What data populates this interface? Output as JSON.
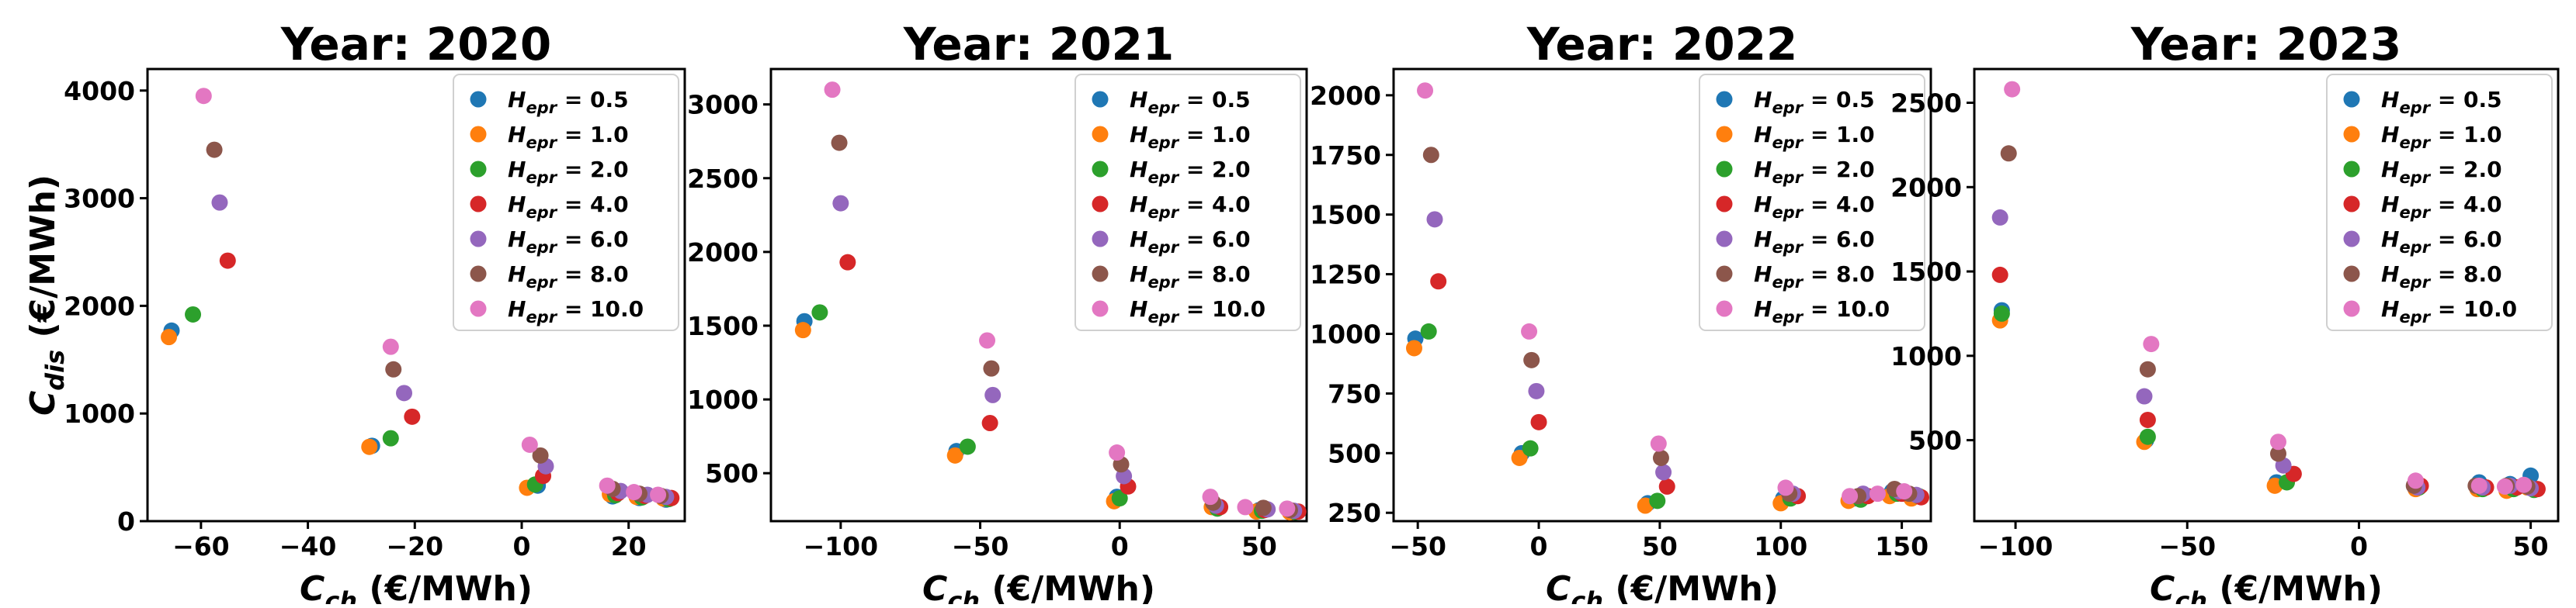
{
  "figure": {
    "ylabel": "C_dis (€/MWh)"
  },
  "legend": {
    "entries": [
      {
        "main": "H",
        "sub": "epr",
        "value": " = 0.5",
        "color": "#1f77b4"
      },
      {
        "main": "H",
        "sub": "epr",
        "value": " = 1.0",
        "color": "#ff7f0e"
      },
      {
        "main": "H",
        "sub": "epr",
        "value": " = 2.0",
        "color": "#2ca02c"
      },
      {
        "main": "H",
        "sub": "epr",
        "value": " = 4.0",
        "color": "#d62728"
      },
      {
        "main": "H",
        "sub": "epr",
        "value": " = 6.0",
        "color": "#9467bd"
      },
      {
        "main": "H",
        "sub": "epr",
        "value": " = 8.0",
        "color": "#8c564b"
      },
      {
        "main": "H",
        "sub": "epr",
        "value": " = 10.0",
        "color": "#e377c2"
      }
    ]
  },
  "chart_data": [
    {
      "type": "scatter",
      "title": "Year: 2020",
      "xlabel": "C_ch (€/MWh)",
      "ylabel": "C_dis (€/MWh)",
      "xlim": [
        -70,
        30.5
      ],
      "ylim": [
        0,
        4200
      ],
      "xticks": [
        -60,
        -40,
        -20,
        0,
        20
      ],
      "yticks": [
        0,
        1000,
        2000,
        3000,
        4000
      ],
      "series": [
        {
          "name": "H_epr = 0.5",
          "points": [
            [
              -65.5,
              1770
            ],
            [
              -28,
              700
            ],
            [
              3,
              330
            ],
            [
              17,
              230
            ],
            [
              22,
              215
            ],
            [
              27,
              200
            ]
          ]
        },
        {
          "name": "H_epr = 1.0",
          "points": [
            [
              -66,
              1710
            ],
            [
              -28.5,
              690
            ],
            [
              1,
              310
            ],
            [
              16.5,
              250
            ],
            [
              21.5,
              225
            ],
            [
              26.5,
              210
            ]
          ]
        },
        {
          "name": "H_epr = 2.0",
          "points": [
            [
              -61.5,
              1920
            ],
            [
              -24.5,
              770
            ],
            [
              2.5,
              340
            ],
            [
              17.5,
              240
            ],
            [
              22.5,
              220
            ],
            [
              27.5,
              205
            ]
          ]
        },
        {
          "name": "H_epr = 4.0",
          "points": [
            [
              -55,
              2420
            ],
            [
              -20.5,
              970
            ],
            [
              4,
              420
            ],
            [
              18,
              260
            ],
            [
              23,
              235
            ],
            [
              28,
              215
            ]
          ]
        },
        {
          "name": "H_epr = 6.0",
          "points": [
            [
              -56.5,
              2960
            ],
            [
              -22,
              1190
            ],
            [
              4.5,
              510
            ],
            [
              18.5,
              280
            ],
            [
              23.5,
              245
            ],
            [
              27,
              225
            ]
          ]
        },
        {
          "name": "H_epr = 8.0",
          "points": [
            [
              -57.5,
              3450
            ],
            [
              -24,
              1410
            ],
            [
              3.5,
              610
            ],
            [
              17,
              300
            ],
            [
              22,
              255
            ],
            [
              26,
              235
            ]
          ]
        },
        {
          "name": "H_epr = 10.0",
          "points": [
            [
              -59.5,
              3950
            ],
            [
              -24.5,
              1620
            ],
            [
              1.5,
              710
            ],
            [
              16,
              330
            ],
            [
              21,
              270
            ],
            [
              25.5,
              245
            ]
          ]
        }
      ]
    },
    {
      "type": "scatter",
      "title": "Year: 2021",
      "xlabel": "C_ch (€/MWh)",
      "ylabel": "",
      "xlim": [
        -125,
        67
      ],
      "ylim": [
        175,
        3240
      ],
      "xticks": [
        -100,
        -50,
        0,
        50
      ],
      "yticks": [
        500,
        1000,
        1500,
        2000,
        2500,
        3000
      ],
      "series": [
        {
          "name": "H_epr = 0.5",
          "points": [
            [
              -113,
              1530
            ],
            [
              -58.5,
              650
            ],
            [
              -1,
              340
            ],
            [
              34,
              280
            ],
            [
              50,
              250
            ],
            [
              62,
              240
            ]
          ]
        },
        {
          "name": "H_epr = 1.0",
          "points": [
            [
              -113.5,
              1470
            ],
            [
              -59,
              620
            ],
            [
              -2,
              310
            ],
            [
              33,
              270
            ],
            [
              49,
              240
            ],
            [
              61,
              235
            ]
          ]
        },
        {
          "name": "H_epr = 2.0",
          "points": [
            [
              -107.5,
              1590
            ],
            [
              -54.5,
              680
            ],
            [
              0,
              330
            ],
            [
              35,
              260
            ],
            [
              51,
              245
            ],
            [
              63,
              238
            ]
          ]
        },
        {
          "name": "H_epr = 4.0",
          "points": [
            [
              -97.5,
              1930
            ],
            [
              -46.5,
              840
            ],
            [
              3,
              410
            ],
            [
              36,
              270
            ],
            [
              52,
              250
            ],
            [
              64,
              240
            ]
          ]
        },
        {
          "name": "H_epr = 6.0",
          "points": [
            [
              -100,
              2330
            ],
            [
              -45.5,
              1030
            ],
            [
              1.5,
              480
            ],
            [
              34.5,
              280
            ],
            [
              53,
              255
            ],
            [
              62.5,
              245
            ]
          ]
        },
        {
          "name": "H_epr = 8.0",
          "points": [
            [
              -100.5,
              2740
            ],
            [
              -46,
              1210
            ],
            [
              0.5,
              560
            ],
            [
              33.5,
              300
            ],
            [
              51.5,
              265
            ],
            [
              61,
              250
            ]
          ]
        },
        {
          "name": "H_epr = 10.0",
          "points": [
            [
              -103,
              3100
            ],
            [
              -47.5,
              1400
            ],
            [
              -1,
              640
            ],
            [
              32.5,
              340
            ],
            [
              45,
              270
            ],
            [
              60,
              260
            ]
          ]
        }
      ]
    },
    {
      "type": "scatter",
      "title": "Year: 2022",
      "xlabel": "C_ch (€/MWh)",
      "ylabel": "",
      "xlim": [
        -60,
        162
      ],
      "ylim": [
        215,
        2110
      ],
      "xticks": [
        -50,
        0,
        50,
        100,
        150
      ],
      "yticks": [
        250,
        500,
        750,
        1000,
        1250,
        1500,
        1750,
        2000
      ],
      "series": [
        {
          "name": "H_epr = 0.5",
          "points": [
            [
              -51,
              980
            ],
            [
              -7,
              500
            ],
            [
              45,
              290
            ],
            [
              101,
              310
            ],
            [
              130,
              310
            ],
            [
              146,
              340
            ],
            [
              155,
              320
            ]
          ]
        },
        {
          "name": "H_epr = 1.0",
          "points": [
            [
              -51.5,
              940
            ],
            [
              -8,
              480
            ],
            [
              44,
              280
            ],
            [
              100,
              290
            ],
            [
              128,
              300
            ],
            [
              145,
              320
            ],
            [
              154,
              310
            ]
          ]
        },
        {
          "name": "H_epr = 2.0",
          "points": [
            [
              -45.5,
              1010
            ],
            [
              -3.5,
              520
            ],
            [
              49,
              300
            ],
            [
              104,
              310
            ],
            [
              133,
              305
            ],
            [
              148,
              330
            ],
            [
              157,
              320
            ]
          ]
        },
        {
          "name": "H_epr = 4.0",
          "points": [
            [
              -41.5,
              1220
            ],
            [
              0,
              630
            ],
            [
              53,
              360
            ],
            [
              107,
              320
            ],
            [
              136,
              320
            ],
            [
              150,
              330
            ],
            [
              158,
              315
            ]
          ]
        },
        {
          "name": "H_epr = 6.0",
          "points": [
            [
              -43,
              1480
            ],
            [
              -1,
              760
            ],
            [
              51.5,
              420
            ],
            [
              105,
              330
            ],
            [
              134,
              330
            ],
            [
              149,
              340
            ],
            [
              156,
              325
            ]
          ]
        },
        {
          "name": "H_epr = 8.0",
          "points": [
            [
              -44.5,
              1750
            ],
            [
              -3,
              890
            ],
            [
              50.5,
              480
            ],
            [
              103.5,
              330
            ],
            [
              132,
              320
            ],
            [
              147,
              350
            ],
            [
              153,
              330
            ]
          ]
        },
        {
          "name": "H_epr = 10.0",
          "points": [
            [
              -47,
              2020
            ],
            [
              -4,
              1010
            ],
            [
              49.5,
              540
            ],
            [
              102,
              355
            ],
            [
              128.5,
              320
            ],
            [
              140,
              330
            ],
            [
              151,
              340
            ]
          ]
        }
      ]
    },
    {
      "type": "scatter",
      "title": "Year: 2023",
      "xlabel": "C_ch (€/MWh)",
      "ylabel": "",
      "xlim": [
        -112,
        58
      ],
      "ylim": [
        20,
        2700
      ],
      "xticks": [
        -100,
        -50,
        0,
        50
      ],
      "yticks": [
        500,
        1000,
        1500,
        2000,
        2500
      ],
      "series": [
        {
          "name": "H_epr = 0.5",
          "points": [
            [
              -104,
              1270
            ],
            [
              -62,
              500
            ],
            [
              -24,
              250
            ],
            [
              17,
              240
            ],
            [
              35,
              250
            ],
            [
              44,
              240
            ],
            [
              50,
              290
            ]
          ]
        },
        {
          "name": "H_epr = 1.0",
          "points": [
            [
              -104.5,
              1210
            ],
            [
              -62.5,
              490
            ],
            [
              -24.5,
              230
            ],
            [
              16.5,
              210
            ],
            [
              34.5,
              210
            ],
            [
              43,
              200
            ],
            [
              49,
              220
            ]
          ]
        },
        {
          "name": "H_epr = 2.0",
          "points": [
            [
              -104,
              1250
            ],
            [
              -61.5,
              520
            ],
            [
              -21,
              250
            ],
            [
              17.5,
              220
            ],
            [
              36,
              210
            ],
            [
              45,
              210
            ],
            [
              51,
              205
            ]
          ]
        },
        {
          "name": "H_epr = 4.0",
          "points": [
            [
              -104.5,
              1480
            ],
            [
              -61.5,
              620
            ],
            [
              -19,
              300
            ],
            [
              18,
              230
            ],
            [
              37,
              220
            ],
            [
              46,
              220
            ],
            [
              52,
              210
            ]
          ]
        },
        {
          "name": "H_epr = 6.0",
          "points": [
            [
              -104.5,
              1820
            ],
            [
              -62.5,
              760
            ],
            [
              -22,
              350
            ],
            [
              17,
              220
            ],
            [
              36,
              220
            ],
            [
              44,
              230
            ],
            [
              50,
              215
            ]
          ]
        },
        {
          "name": "H_epr = 8.0",
          "points": [
            [
              -102,
              2200
            ],
            [
              -61.5,
              920
            ],
            [
              -23.5,
              420
            ],
            [
              16,
              230
            ],
            [
              34,
              230
            ],
            [
              43,
              230
            ],
            [
              49,
              225
            ]
          ]
        },
        {
          "name": "H_epr = 10.0",
          "points": [
            [
              -101,
              2580
            ],
            [
              -60.5,
              1070
            ],
            [
              -23.5,
              490
            ],
            [
              16.5,
              260
            ],
            [
              35,
              230
            ],
            [
              42.5,
              225
            ],
            [
              48,
              235
            ]
          ]
        }
      ]
    }
  ]
}
